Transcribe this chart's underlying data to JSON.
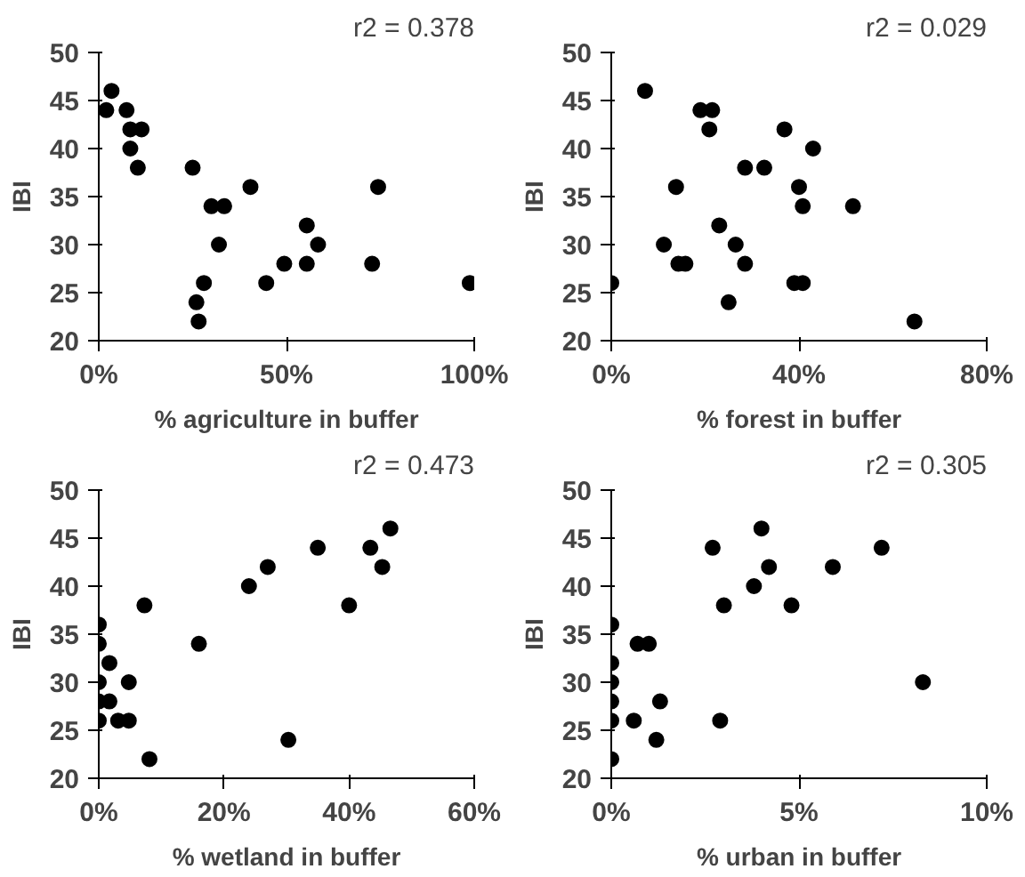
{
  "chart_data": [
    {
      "type": "scatter",
      "xlabel": "% agriculture in buffer",
      "ylabel": "IBI",
      "annotations": [
        "r2 = 0.378"
      ],
      "marker": "circle",
      "grid": false,
      "xlim": [
        0,
        100
      ],
      "xticks": [
        {
          "value": 0,
          "label": "0%"
        },
        {
          "value": 50,
          "label": "50%"
        },
        {
          "value": 100,
          "label": "100%"
        }
      ],
      "ylim": [
        20,
        50
      ],
      "yticks": [
        20,
        25,
        30,
        35,
        40,
        45,
        50
      ],
      "series": [
        {
          "color": "#000000",
          "x": [
            2,
            3.4,
            7.4,
            8.4,
            11.4,
            8.4,
            10.4,
            25,
            30,
            33.4,
            32,
            40.4,
            28,
            26,
            26.6,
            44.6,
            49.4,
            55.4,
            55.4,
            58.4,
            72.8,
            74.4,
            98.8
          ],
          "values": [
            44,
            46,
            44,
            42,
            42,
            40,
            38,
            38,
            34,
            34,
            30,
            36,
            26,
            24,
            22,
            26,
            28,
            32,
            28,
            30,
            28,
            36,
            26
          ]
        }
      ]
    },
    {
      "type": "scatter",
      "xlabel": "% forest in buffer",
      "ylabel": "IBI",
      "annotations": [
        "r2 = 0.029"
      ],
      "marker": "circle",
      "grid": false,
      "xlim": [
        0,
        80
      ],
      "xticks": [
        {
          "value": 0,
          "label": "0%"
        },
        {
          "value": 40,
          "label": "40%"
        },
        {
          "value": 80,
          "label": "80%"
        }
      ],
      "ylim": [
        20,
        50
      ],
      "yticks": [
        20,
        25,
        30,
        35,
        40,
        45,
        50
      ],
      "series": [
        {
          "color": "#000000",
          "x": [
            0,
            7.2,
            19,
            21.5,
            20.9,
            13.8,
            11.2,
            14.3,
            15.8,
            23,
            26.5,
            28.5,
            25,
            28.5,
            32.6,
            36.9,
            43,
            40,
            40.8,
            51.5,
            39,
            40.8,
            64.6
          ],
          "values": [
            26,
            46,
            44,
            44,
            42,
            36,
            30,
            28,
            28,
            32,
            30,
            28,
            24,
            38,
            38,
            42,
            40,
            36,
            34,
            34,
            26,
            26,
            22
          ]
        }
      ]
    },
    {
      "type": "scatter",
      "xlabel": "% wetland in buffer",
      "ylabel": "IBI",
      "annotations": [
        "r2 = 0.473"
      ],
      "marker": "circle",
      "grid": false,
      "xlim": [
        0,
        60
      ],
      "xticks": [
        {
          "value": 0,
          "label": "0%"
        },
        {
          "value": 20,
          "label": "20%"
        },
        {
          "value": 40,
          "label": "40%"
        },
        {
          "value": 60,
          "label": "60%"
        }
      ],
      "ylim": [
        20,
        50
      ],
      "yticks": [
        20,
        25,
        30,
        35,
        40,
        45,
        50
      ],
      "series": [
        {
          "color": "#000000",
          "x": [
            0,
            0,
            0,
            0,
            0,
            1.7,
            1.7,
            3.1,
            4.8,
            4.8,
            7.3,
            8.1,
            16,
            24,
            27,
            30.3,
            35,
            40,
            43.4,
            45.3,
            46.6
          ],
          "values": [
            36,
            34,
            30,
            28,
            26,
            32,
            28,
            26,
            26,
            30,
            38,
            22,
            34,
            40,
            42,
            24,
            44,
            38,
            44,
            42,
            46
          ]
        }
      ]
    },
    {
      "type": "scatter",
      "xlabel": "% urban in buffer",
      "ylabel": "IBI",
      "annotations": [
        "r2 = 0.305"
      ],
      "marker": "circle",
      "grid": false,
      "xlim": [
        0,
        10
      ],
      "xticks": [
        {
          "value": 0,
          "label": "0%"
        },
        {
          "value": 5,
          "label": "5%"
        },
        {
          "value": 10,
          "label": "10%"
        }
      ],
      "ylim": [
        20,
        50
      ],
      "yticks": [
        20,
        25,
        30,
        35,
        40,
        45,
        50
      ],
      "series": [
        {
          "color": "#000000",
          "x": [
            0,
            0,
            0,
            0,
            0,
            0,
            0.7,
            1.0,
            0.6,
            1.3,
            1.2,
            2.7,
            3.0,
            2.9,
            3.8,
            4.0,
            4.2,
            4.8,
            5.9,
            7.2,
            8.3
          ],
          "values": [
            36,
            32,
            30,
            28,
            26,
            22,
            34,
            34,
            26,
            28,
            24,
            44,
            38,
            26,
            40,
            46,
            42,
            38,
            42,
            44,
            30
          ]
        }
      ]
    }
  ]
}
